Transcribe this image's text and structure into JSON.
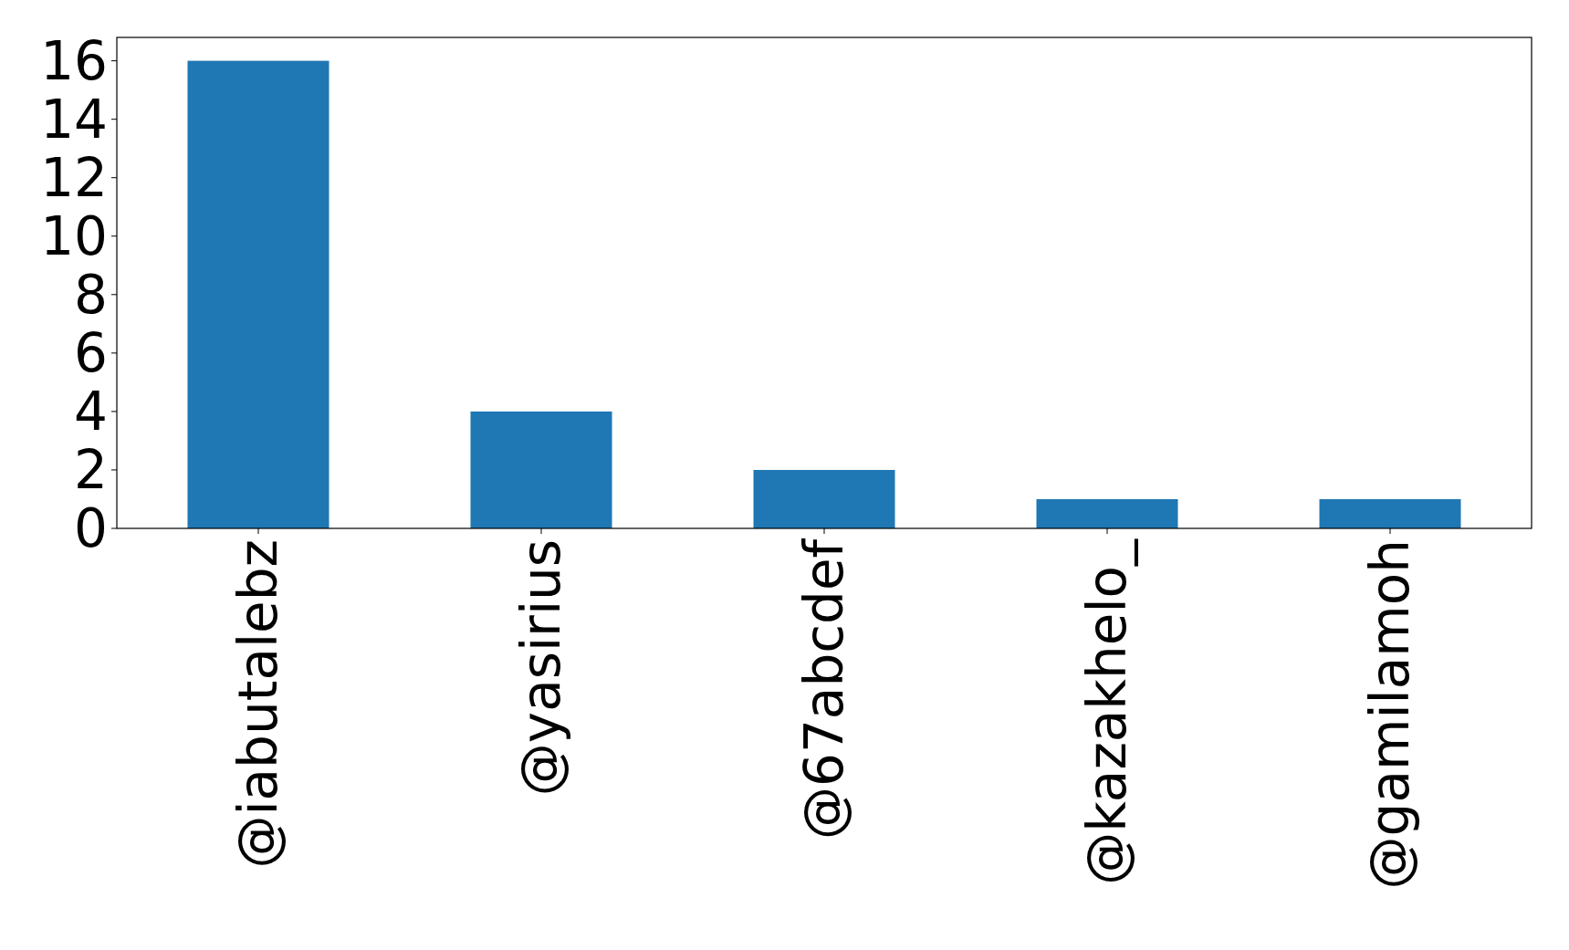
{
  "chart_data": {
    "type": "bar",
    "categories": [
      "@iabutalebz",
      "@yasirius",
      "@67abcdef",
      "@kazakhelo_",
      "@gamilamoh"
    ],
    "values": [
      16,
      4,
      2,
      1,
      1
    ],
    "color": "#1f77b4",
    "ylim": [
      0,
      16.8
    ],
    "yticks": [
      0,
      2,
      4,
      6,
      8,
      10,
      12,
      14,
      16
    ],
    "grid": false
  }
}
